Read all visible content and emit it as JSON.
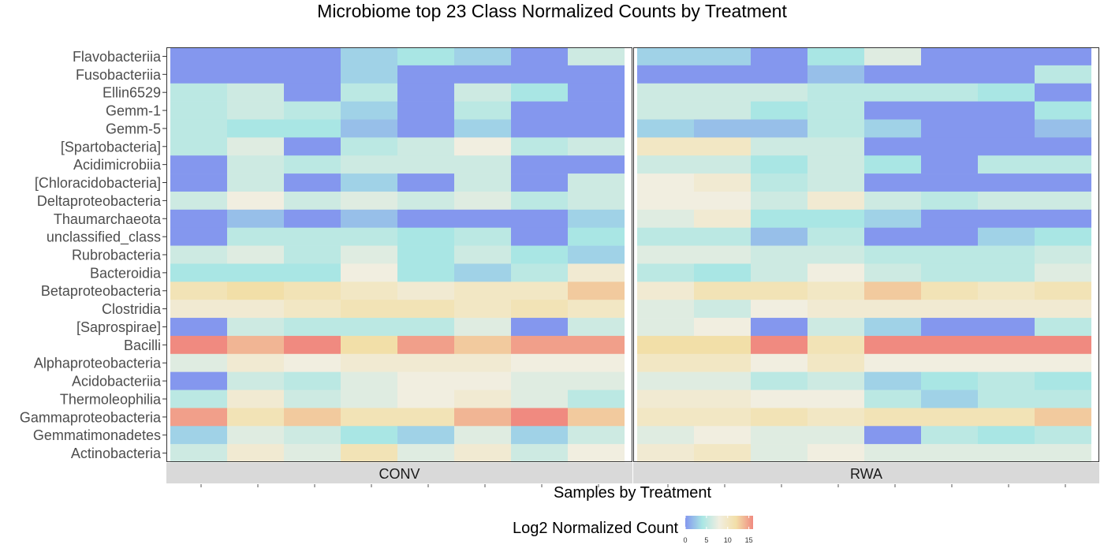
{
  "chart_data": {
    "type": "heatmap",
    "title": "Microbiome top 23 Class Normalized Counts by Treatment",
    "xlabel": "Samples by Treatment",
    "ylabel": "",
    "legend": {
      "title": "Log2 Normalized Count",
      "placement": "bottom",
      "ticks": [
        0,
        5,
        10,
        15
      ],
      "range": [
        0,
        16
      ],
      "colors": [
        "#8497ee",
        "#a9e6e4",
        "#f1eee0",
        "#f2dfa8",
        "#f08a80"
      ]
    },
    "rows": [
      "Flavobacteriia",
      "Fusobacteriia",
      "Ellin6529",
      "Gemm-1",
      "Gemm-5",
      "[Spartobacteria]",
      "Acidimicrobiia",
      "[Chloracidobacteria]",
      "Deltaproteobacteria",
      "Thaumarchaeota",
      "unclassified_class",
      "Rubrobacteria",
      "Bacteroidia",
      "Betaproteobacteria",
      "Clostridia",
      "[Saprospirae]",
      "Bacilli",
      "Alphaproteobacteria",
      "Acidobacteriia",
      "Thermoleophilia",
      "Gammaproteobacteria",
      "Gemmatimonadetes",
      "Actinobacteria"
    ],
    "panels": [
      {
        "name": "CONV",
        "columns": 8,
        "values": [
          [
            0,
            0,
            0,
            3,
            4,
            3,
            0,
            6
          ],
          [
            0,
            0,
            0,
            3,
            0,
            0,
            0,
            0
          ],
          [
            5,
            6,
            0,
            5,
            0,
            6,
            4,
            0
          ],
          [
            5,
            6,
            5,
            3,
            0,
            5,
            0,
            0
          ],
          [
            5,
            4,
            4,
            2,
            0,
            3,
            0,
            0
          ],
          [
            5,
            7,
            0,
            5,
            6,
            8,
            5,
            6
          ],
          [
            0,
            6,
            5,
            6,
            6,
            6,
            0,
            0
          ],
          [
            0,
            6,
            0,
            3,
            0,
            6,
            0,
            6
          ],
          [
            6,
            8,
            6,
            7,
            6,
            7,
            5,
            6
          ],
          [
            0,
            2,
            0,
            2,
            0,
            0,
            0,
            3
          ],
          [
            0,
            5,
            5,
            5,
            4,
            5,
            0,
            4
          ],
          [
            6,
            7,
            5,
            7,
            4,
            6,
            4,
            3
          ],
          [
            4,
            4,
            4,
            8,
            4,
            3,
            5,
            9
          ],
          [
            11,
            12,
            11,
            10,
            9,
            10,
            10,
            13
          ],
          [
            9,
            9,
            10,
            11,
            11,
            10,
            11,
            10
          ],
          [
            0,
            6,
            5,
            5,
            5,
            7,
            0,
            6
          ],
          [
            16,
            14,
            16,
            12,
            15,
            13,
            15,
            15
          ],
          [
            7,
            9,
            8,
            9,
            9,
            9,
            8,
            8
          ],
          [
            0,
            6,
            5,
            7,
            8,
            8,
            7,
            7
          ],
          [
            5,
            9,
            6,
            7,
            8,
            9,
            7,
            5
          ],
          [
            15,
            11,
            13,
            11,
            11,
            14,
            16,
            13
          ],
          [
            3,
            7,
            6,
            4,
            3,
            7,
            3,
            6
          ],
          [
            6,
            9,
            7,
            11,
            7,
            9,
            6,
            8
          ]
        ]
      },
      {
        "name": "RWA",
        "columns": 8,
        "values": [
          [
            3,
            3,
            0,
            4,
            7,
            0,
            0,
            0
          ],
          [
            0,
            0,
            0,
            2,
            0,
            0,
            0,
            5
          ],
          [
            6,
            6,
            6,
            5,
            5,
            5,
            4,
            0
          ],
          [
            6,
            6,
            4,
            5,
            0,
            0,
            0,
            4
          ],
          [
            3,
            2,
            2,
            5,
            3,
            0,
            0,
            2
          ],
          [
            10,
            10,
            6,
            6,
            0,
            0,
            0,
            0
          ],
          [
            6,
            6,
            4,
            6,
            4,
            0,
            5,
            5
          ],
          [
            8,
            9,
            5,
            6,
            0,
            0,
            0,
            0
          ],
          [
            8,
            8,
            6,
            9,
            6,
            5,
            6,
            6
          ],
          [
            7,
            9,
            4,
            4,
            3,
            0,
            0,
            0
          ],
          [
            5,
            5,
            2,
            5,
            0,
            0,
            3,
            4
          ],
          [
            7,
            7,
            6,
            6,
            5,
            5,
            5,
            6
          ],
          [
            5,
            4,
            6,
            8,
            6,
            5,
            5,
            7
          ],
          [
            9,
            11,
            11,
            10,
            13,
            11,
            10,
            11
          ],
          [
            7,
            6,
            8,
            9,
            9,
            9,
            9,
            9
          ],
          [
            7,
            8,
            0,
            6,
            3,
            0,
            0,
            5
          ],
          [
            12,
            12,
            16,
            11,
            16,
            16,
            16,
            16
          ],
          [
            10,
            10,
            8,
            10,
            8,
            8,
            8,
            8
          ],
          [
            7,
            7,
            5,
            6,
            3,
            4,
            5,
            4
          ],
          [
            9,
            9,
            8,
            8,
            5,
            3,
            5,
            5
          ],
          [
            10,
            10,
            11,
            10,
            11,
            11,
            11,
            13
          ],
          [
            7,
            8,
            7,
            7,
            0,
            5,
            4,
            5
          ],
          [
            9,
            10,
            7,
            8,
            7,
            7,
            7,
            7
          ]
        ]
      }
    ],
    "grid": false
  }
}
